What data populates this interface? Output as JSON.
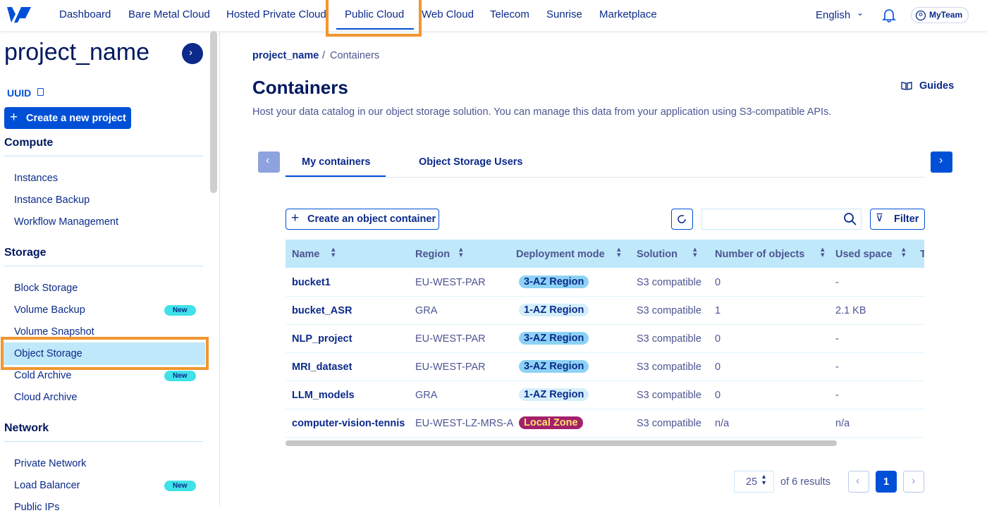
{
  "nav": {
    "items": [
      "Dashboard",
      "Bare Metal Cloud",
      "Hosted Private Cloud",
      "Public Cloud",
      "Web Cloud",
      "Telecom",
      "Sunrise",
      "Marketplace"
    ],
    "language": "English",
    "account": "MyTeam"
  },
  "sidebar": {
    "project": "project_name",
    "uuid": "UUID",
    "create": "Create a new project",
    "sections": [
      {
        "title": "Compute",
        "items": [
          {
            "label": "Instances"
          },
          {
            "label": "Instance Backup"
          },
          {
            "label": "Workflow Management"
          }
        ]
      },
      {
        "title": "Storage",
        "items": [
          {
            "label": "Block Storage"
          },
          {
            "label": "Volume Backup",
            "badge": "New"
          },
          {
            "label": "Volume Snapshot"
          },
          {
            "label": "Object Storage"
          },
          {
            "label": "Cold Archive",
            "badge": "New"
          },
          {
            "label": "Cloud Archive"
          }
        ]
      },
      {
        "title": "Network",
        "items": [
          {
            "label": "Private Network"
          },
          {
            "label": "Load Balancer",
            "badge": "New"
          },
          {
            "label": "Public IPs"
          }
        ]
      }
    ]
  },
  "breadcrumb": {
    "items": [
      "project_name",
      "Containers"
    ],
    "separator": "/"
  },
  "header": {
    "title": "Containers",
    "guides": "Guides",
    "description": "Host your data catalog in our object storage solution. You can manage this data from your application using S3-compatible APIs."
  },
  "tabs": [
    "My containers",
    "Object Storage Users"
  ],
  "toolbar": {
    "create": "Create an object container",
    "filter": "Filter"
  },
  "table": {
    "columns": [
      "Name",
      "Region",
      "Deployment mode",
      "Solution",
      "Number of objects",
      "Used space",
      "T"
    ],
    "rows": [
      [
        "bucket1",
        "EU-WEST-PAR",
        {
          "text": "3-AZ Region",
          "bg": "#8dd2f4",
          "fg": "#0b2a8a"
        },
        "S3 compatible",
        0,
        "-"
      ],
      [
        "bucket_ASR",
        "GRA",
        {
          "text": "1-AZ Region",
          "bg": "#d4effb",
          "fg": "#0b2a8a"
        },
        "S3 compatible",
        1,
        "2.1 KB"
      ],
      [
        "NLP_project",
        "EU-WEST-PAR",
        {
          "text": "3-AZ Region",
          "bg": "#8dd2f4",
          "fg": "#0b2a8a"
        },
        "S3 compatible",
        0,
        "-"
      ],
      [
        "MRI_dataset",
        "EU-WEST-PAR",
        {
          "text": "3-AZ Region",
          "bg": "#8dd2f4",
          "fg": "#0b2a8a"
        },
        "S3 compatible",
        0,
        "-"
      ],
      [
        "LLM_models",
        "GRA",
        {
          "text": "1-AZ Region",
          "bg": "#d4effb",
          "fg": "#0b2a8a"
        },
        "S3 compatible",
        0,
        "-"
      ],
      [
        "computer-vision-tennis",
        "EU-WEST-LZ-MRS-A",
        {
          "text": "Local Zone",
          "bg": "#a3216b",
          "fg": "#ffe46b"
        },
        "S3 compatible",
        "n/a",
        "n/a"
      ]
    ]
  },
  "pagination": {
    "page_size": 25,
    "results": "of 6 results",
    "current": 1
  }
}
